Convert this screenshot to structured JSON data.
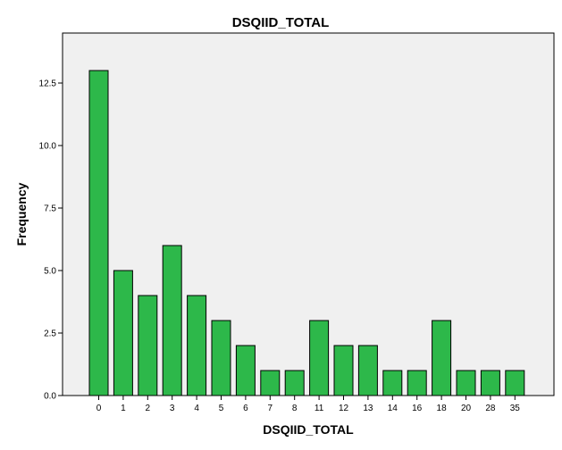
{
  "chart_data": {
    "type": "bar",
    "title": "DSQIID_TOTAL",
    "xlabel": "DSQIID_TOTAL",
    "ylabel": "Frequency",
    "categories": [
      "0",
      "1",
      "2",
      "3",
      "4",
      "5",
      "6",
      "7",
      "8",
      "11",
      "12",
      "13",
      "14",
      "16",
      "18",
      "20",
      "28",
      "35"
    ],
    "values": [
      13,
      5,
      4,
      6,
      4,
      3,
      2,
      1,
      1,
      3,
      2,
      2,
      1,
      1,
      3,
      1,
      1,
      1
    ],
    "ylim": [
      0,
      14.5
    ],
    "yticks": [
      0.0,
      2.5,
      5.0,
      7.5,
      10.0,
      12.5
    ],
    "ytick_labels": [
      "0.0",
      "2.5",
      "5.0",
      "7.5",
      "10.0",
      "12.5"
    ],
    "grid": false,
    "colors": {
      "bar_fill": "#2db84a",
      "bar_stroke": "#000000",
      "plot_background": "#f0f0f0",
      "axis": "#000000"
    }
  }
}
